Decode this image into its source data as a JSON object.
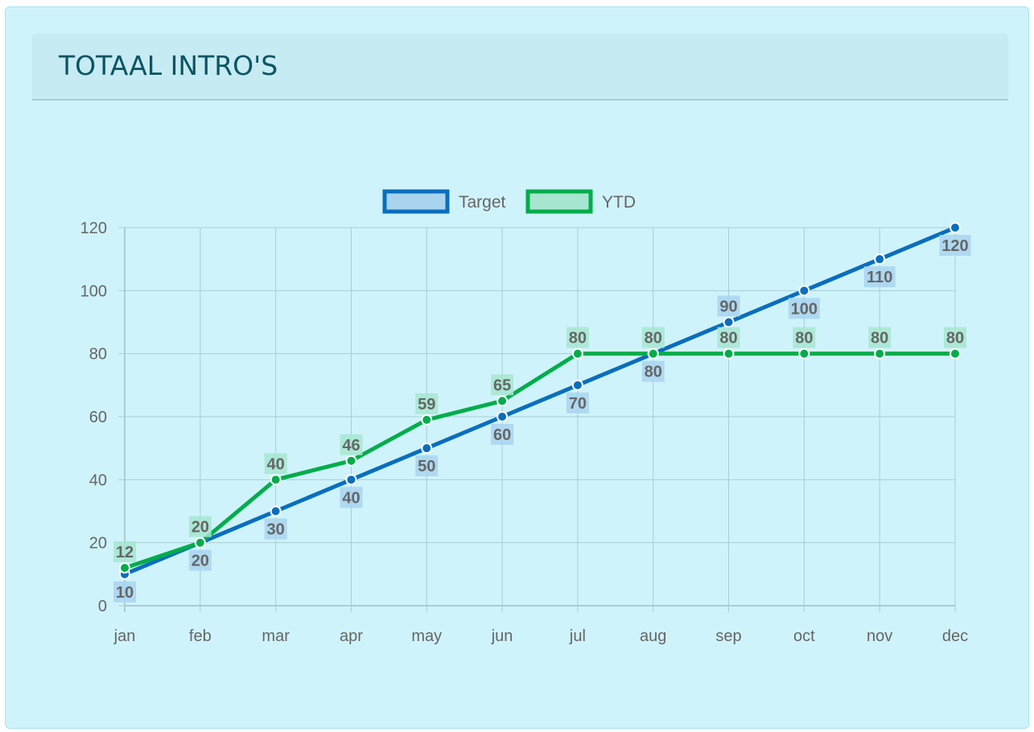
{
  "header": {
    "title": "TOTAAL INTRO'S"
  },
  "colors": {
    "target": "#0a6ebd",
    "target_fill": "#a8d4ee",
    "ytd": "#00ad4b",
    "ytd_fill": "#a6e6d0",
    "grid": "#a9ccd6"
  },
  "chart_data": {
    "type": "line",
    "title": "TOTAAL INTRO'S",
    "categories": [
      "jan",
      "feb",
      "mar",
      "apr",
      "may",
      "jun",
      "jul",
      "aug",
      "sep",
      "oct",
      "nov",
      "dec"
    ],
    "series": [
      {
        "name": "Target",
        "values": [
          10,
          20,
          30,
          40,
          50,
          60,
          70,
          80,
          90,
          100,
          110,
          120
        ]
      },
      {
        "name": "YTD",
        "values": [
          12,
          20,
          40,
          46,
          59,
          65,
          80,
          80,
          80,
          80,
          80,
          80
        ]
      }
    ],
    "ylim": [
      0,
      120
    ],
    "yticks": [
      0,
      20,
      40,
      60,
      80,
      100,
      120
    ],
    "xlabel": "",
    "ylabel": "",
    "grid": true,
    "legend": "top-center",
    "data_labels": true
  }
}
